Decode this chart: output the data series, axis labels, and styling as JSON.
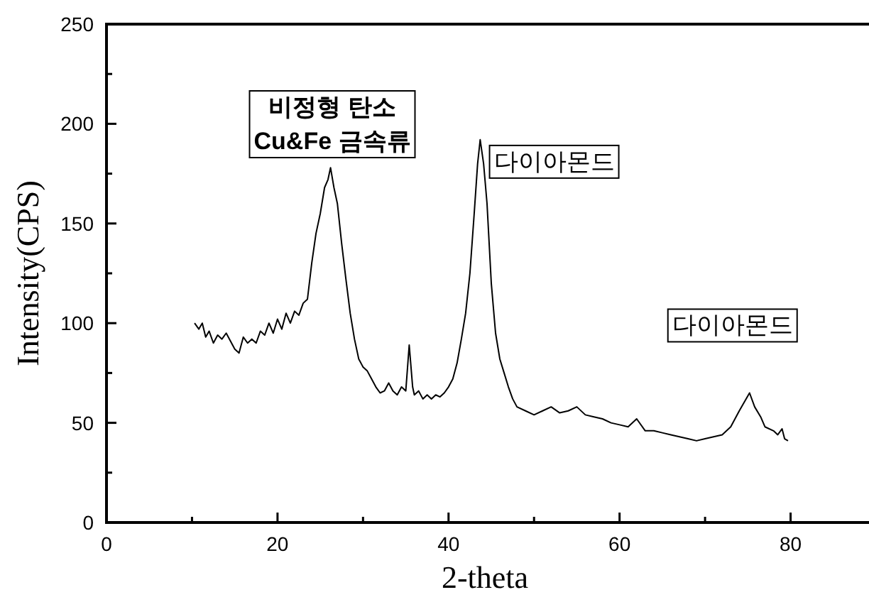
{
  "chart_data": {
    "type": "line",
    "xlabel": "2-theta",
    "ylabel": "Intensity(CPS)",
    "xlim": [
      0,
      90
    ],
    "ylim": [
      0,
      250
    ],
    "xticks": [
      0,
      {
        "value": 10,
        "label": null
      },
      20,
      {
        "value": 30,
        "label": null
      },
      40,
      {
        "value": 50,
        "label": null
      },
      60,
      {
        "value": 70,
        "label": null
      },
      80
    ],
    "yticks": [
      0,
      {
        "value": 25,
        "label": null
      },
      50,
      {
        "value": 75,
        "label": null
      },
      100,
      {
        "value": 125,
        "label": null
      },
      150,
      {
        "value": 175,
        "label": null
      },
      200,
      {
        "value": 225,
        "label": null
      },
      250
    ],
    "marker": "none",
    "line_style": "solid",
    "annotations": [
      "비정형 탄소\nCu&Fe 금속류",
      {
        "text": "다이아몬드",
        "x": 43.8,
        "y": 192
      },
      {
        "text": "다이아몬드",
        "x": 75.2,
        "y": 65
      }
    ],
    "series": [
      {
        "color": "#000000",
        "x": [
          10.3,
          10.8,
          11.2,
          11.6,
          12,
          12.5,
          13,
          13.5,
          14,
          14.5,
          15,
          15.5,
          16,
          16.5,
          17,
          17.5,
          18,
          18.5,
          19,
          19.5,
          20,
          20.5,
          21,
          21.5,
          22,
          22.5,
          23,
          23.5,
          24,
          24.5,
          25,
          25.5,
          25.9,
          26.2,
          26.6,
          27,
          27.5,
          28,
          28.5,
          29,
          29.5,
          30,
          30.5,
          31,
          31.5,
          32,
          32.5,
          33,
          33.5,
          34,
          34.5,
          35,
          35.4,
          35.8,
          36,
          36.5,
          37,
          37.5,
          38,
          38.5,
          39,
          39.5,
          40,
          40.5,
          41,
          41.5,
          42,
          42.5,
          43,
          43.4,
          43.7,
          44.1,
          44.5,
          45,
          45.5,
          46,
          46.5,
          47,
          47.5,
          48,
          49,
          50,
          51,
          52,
          53,
          54,
          55,
          56,
          57,
          58,
          59,
          60,
          61,
          62,
          63,
          64,
          65,
          66,
          67,
          68,
          69,
          70,
          71,
          72,
          73,
          74,
          75.2,
          75.8,
          76.5,
          77,
          78,
          78.5,
          79,
          79.3,
          79.7
        ],
        "values": [
          100,
          97,
          100,
          93,
          96,
          90,
          94,
          92,
          95,
          91,
          87,
          85,
          93,
          90,
          92,
          90,
          96,
          94,
          100,
          95,
          102,
          97,
          105,
          100,
          106,
          104,
          110,
          112,
          130,
          145,
          155,
          168,
          172,
          178,
          168,
          160,
          140,
          122,
          105,
          92,
          82,
          78,
          76,
          72,
          68,
          65,
          66,
          70,
          66,
          64,
          68,
          66,
          89,
          68,
          64,
          66,
          62,
          64,
          62,
          64,
          63,
          65,
          68,
          72,
          80,
          92,
          105,
          125,
          155,
          180,
          192,
          180,
          160,
          120,
          95,
          82,
          75,
          68,
          62,
          58,
          56,
          54,
          56,
          58,
          55,
          56,
          58,
          54,
          53,
          52,
          50,
          49,
          48,
          52,
          46,
          46,
          45,
          44,
          43,
          42,
          41,
          42,
          43,
          44,
          48,
          56,
          65,
          58,
          53,
          48,
          46,
          44,
          47,
          42,
          41
        ]
      }
    ]
  }
}
